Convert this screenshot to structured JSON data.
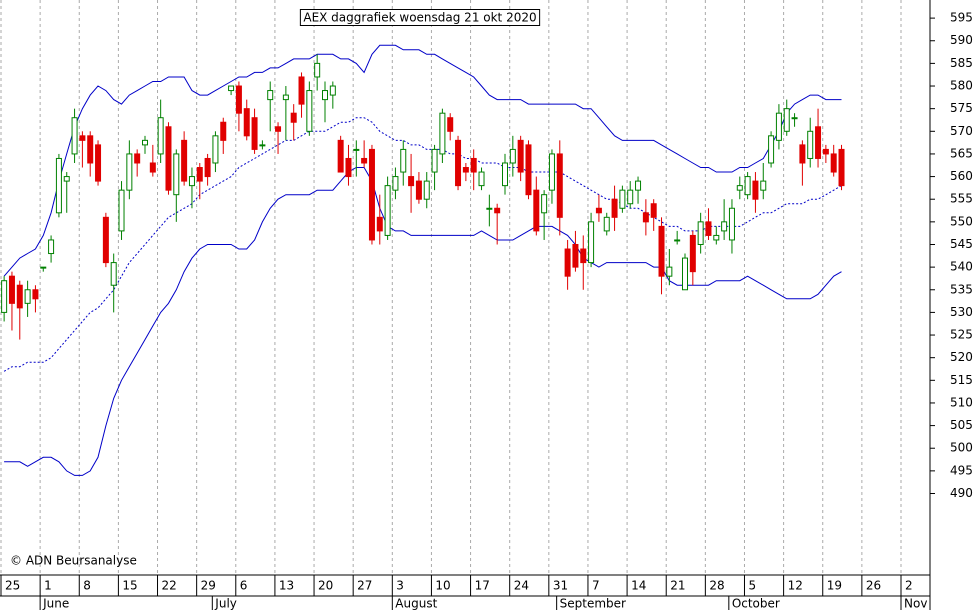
{
  "chart_data": {
    "type": "candlestick",
    "title": "AEX daggrafiek woensdag 21 okt 2020",
    "copyright": "© ADN Beursanalyse",
    "x": [
      "2020-05-25",
      "2020-05-26",
      "2020-05-27",
      "2020-05-28",
      "2020-05-29",
      "2020-06-01",
      "2020-06-02",
      "2020-06-03",
      "2020-06-04",
      "2020-06-05",
      "2020-06-08",
      "2020-06-09",
      "2020-06-10",
      "2020-06-11",
      "2020-06-12",
      "2020-06-15",
      "2020-06-16",
      "2020-06-17",
      "2020-06-18",
      "2020-06-19",
      "2020-06-22",
      "2020-06-23",
      "2020-06-24",
      "2020-06-25",
      "2020-06-26",
      "2020-06-29",
      "2020-06-30",
      "2020-07-01",
      "2020-07-02",
      "2020-07-03",
      "2020-07-06",
      "2020-07-07",
      "2020-07-08",
      "2020-07-09",
      "2020-07-10",
      "2020-07-13",
      "2020-07-14",
      "2020-07-15",
      "2020-07-16",
      "2020-07-17",
      "2020-07-20",
      "2020-07-21",
      "2020-07-22",
      "2020-07-23",
      "2020-07-24",
      "2020-07-27",
      "2020-07-28",
      "2020-07-29",
      "2020-07-30",
      "2020-07-31",
      "2020-08-03",
      "2020-08-04",
      "2020-08-05",
      "2020-08-06",
      "2020-08-07",
      "2020-08-10",
      "2020-08-11",
      "2020-08-12",
      "2020-08-13",
      "2020-08-14",
      "2020-08-17",
      "2020-08-18",
      "2020-08-19",
      "2020-08-20",
      "2020-08-21",
      "2020-08-24",
      "2020-08-25",
      "2020-08-26",
      "2020-08-27",
      "2020-08-28",
      "2020-08-31",
      "2020-09-01",
      "2020-09-02",
      "2020-09-03",
      "2020-09-04",
      "2020-09-07",
      "2020-09-08",
      "2020-09-09",
      "2020-09-10",
      "2020-09-11",
      "2020-09-14",
      "2020-09-15",
      "2020-09-16",
      "2020-09-17",
      "2020-09-18",
      "2020-09-21",
      "2020-09-22",
      "2020-09-23",
      "2020-09-24",
      "2020-09-25",
      "2020-09-28",
      "2020-09-29",
      "2020-09-30",
      "2020-10-01",
      "2020-10-02",
      "2020-10-05",
      "2020-10-06",
      "2020-10-07",
      "2020-10-08",
      "2020-10-09",
      "2020-10-12",
      "2020-10-13",
      "2020-10-14",
      "2020-10-15",
      "2020-10-16",
      "2020-10-19",
      "2020-10-20",
      "2020-10-21"
    ],
    "open": [
      530,
      538,
      536,
      532,
      535,
      540,
      543,
      552,
      559,
      565,
      569,
      569,
      567,
      551,
      536,
      548,
      557,
      565,
      567,
      563,
      565,
      571,
      556,
      568,
      558,
      562,
      564,
      563,
      572,
      579,
      580,
      575,
      573,
      567,
      577,
      571,
      577,
      574,
      582,
      570,
      582,
      577,
      578,
      568,
      564,
      566,
      564,
      566,
      551,
      547,
      557,
      561,
      560,
      559,
      555,
      561,
      565,
      573,
      568,
      562,
      564,
      558,
      553,
      553,
      558,
      563,
      568,
      567,
      557,
      552,
      557,
      565,
      544,
      545,
      544,
      541,
      553,
      548,
      555,
      553,
      554,
      557,
      552,
      554,
      549,
      538,
      546,
      535,
      547,
      545,
      550,
      546,
      548,
      546,
      557,
      556,
      559,
      557,
      563,
      568,
      570,
      573,
      567,
      564,
      571,
      566,
      565,
      566
    ],
    "high": [
      538,
      539,
      537,
      537,
      536,
      540,
      547,
      565,
      561,
      575,
      570,
      570,
      568,
      552,
      543,
      559,
      568,
      566,
      569,
      567,
      577,
      572,
      566,
      570,
      562,
      563,
      565,
      570,
      573,
      580,
      581,
      577,
      575,
      568,
      581,
      572,
      580,
      576,
      583,
      581,
      587,
      581,
      581,
      569,
      567,
      568,
      568,
      567,
      556,
      560,
      562,
      568,
      565,
      561,
      561,
      567,
      575,
      574,
      569,
      563,
      566,
      562,
      556,
      554,
      565,
      569,
      569,
      568,
      560,
      557,
      566,
      568,
      546,
      548,
      547,
      552,
      556,
      552,
      558,
      558,
      559,
      560,
      555,
      555,
      551,
      544,
      548,
      543,
      548,
      552,
      553,
      549,
      555,
      555,
      560,
      561,
      561,
      563,
      570,
      576,
      577,
      574,
      568,
      573,
      575,
      567,
      567,
      567
    ],
    "low": [
      528,
      526,
      524,
      529,
      530,
      539,
      541,
      551,
      552,
      563,
      562,
      560,
      558,
      540,
      530,
      546,
      555,
      560,
      565,
      560,
      563,
      556,
      550,
      558,
      553,
      555,
      558,
      561,
      565,
      578,
      570,
      568,
      565,
      566,
      570,
      565,
      568,
      568,
      573,
      569,
      579,
      572,
      575,
      561,
      558,
      560,
      562,
      545,
      545,
      546,
      555,
      558,
      552,
      554,
      553,
      557,
      563,
      568,
      557,
      559,
      557,
      557,
      549,
      545,
      556,
      560,
      559,
      555,
      547,
      546,
      554,
      547,
      535,
      539,
      535,
      540,
      550,
      547,
      548,
      552,
      553,
      554,
      547,
      548,
      534,
      536,
      545,
      535,
      536,
      543,
      546,
      545,
      546,
      543,
      555,
      555,
      552,
      555,
      562,
      566,
      569,
      571,
      558,
      562,
      562,
      563,
      560,
      557
    ],
    "close": [
      537,
      532,
      531,
      535,
      533,
      540,
      546,
      564,
      560,
      573,
      568,
      563,
      559,
      541,
      541,
      557,
      565,
      563,
      568,
      561,
      573,
      557,
      565,
      559,
      560,
      559,
      560,
      569,
      568,
      580,
      574,
      569,
      566,
      567,
      579,
      570,
      578,
      572,
      576,
      579,
      585,
      579,
      580,
      561,
      560,
      566,
      563,
      546,
      548,
      558,
      560,
      566,
      558,
      555,
      559,
      566,
      574,
      570,
      558,
      561,
      561,
      561,
      553,
      552,
      563,
      566,
      561,
      556,
      548,
      556,
      565,
      551,
      538,
      540,
      541,
      550,
      552,
      551,
      551,
      557,
      557,
      559,
      550,
      551,
      538,
      540,
      546,
      542,
      539,
      550,
      547,
      547,
      550,
      553,
      558,
      560,
      555,
      559,
      569,
      574,
      575,
      573,
      563,
      570,
      564,
      565,
      561,
      558
    ],
    "bands": [
      {
        "color": "#0000c8",
        "dash": false,
        "values": [
          538,
          540,
          542,
          543,
          544,
          547,
          552,
          559,
          565,
          571,
          575,
          578,
          580,
          579,
          577,
          576,
          578,
          579,
          580,
          581,
          581,
          582,
          582,
          582,
          579,
          578,
          578,
          579,
          580,
          581,
          582,
          582,
          583,
          583,
          584,
          584,
          585,
          586,
          586,
          586,
          587,
          587,
          587,
          586,
          586,
          585,
          583,
          587,
          589,
          589,
          589,
          588,
          588,
          588,
          587,
          587,
          586,
          585,
          584,
          583,
          582,
          580,
          578,
          577,
          577,
          577,
          577,
          576,
          576,
          576,
          576,
          576,
          576,
          576,
          575,
          575,
          573,
          571,
          569,
          568,
          568,
          568,
          568,
          568,
          567,
          566,
          565,
          564,
          563,
          562,
          562,
          561,
          561,
          561,
          562,
          562,
          563,
          564,
          567,
          570,
          574,
          576,
          577,
          578,
          578,
          577,
          577,
          577
        ]
      },
      {
        "color": "#0000c8",
        "dash": true,
        "values": [
          517,
          518,
          518,
          519,
          519,
          519,
          520,
          522,
          524,
          526,
          528,
          530,
          531,
          533,
          535,
          538,
          541,
          543,
          545,
          547,
          549,
          551,
          552,
          553,
          554,
          556,
          557,
          558,
          559,
          560,
          562,
          563,
          564,
          565,
          566,
          567,
          568,
          568,
          569,
          570,
          570,
          570,
          571,
          572,
          572,
          573,
          573,
          572,
          570,
          569,
          568,
          568,
          567,
          567,
          566,
          566,
          566,
          565,
          565,
          564,
          564,
          563,
          563,
          563,
          562,
          562,
          562,
          561,
          561,
          561,
          561,
          561,
          560,
          559,
          558,
          557,
          556,
          555,
          555,
          554,
          553,
          553,
          552,
          551,
          550,
          549,
          549,
          548,
          548,
          548,
          549,
          549,
          549,
          549,
          549,
          550,
          551,
          552,
          552,
          553,
          554,
          554,
          554,
          555,
          555,
          556,
          557,
          558
        ]
      },
      {
        "color": "#0000c8",
        "dash": false,
        "values": [
          497,
          497,
          497,
          496,
          497,
          498,
          498,
          497,
          495,
          494,
          494,
          495,
          498,
          505,
          511,
          515,
          518,
          521,
          524,
          527,
          530,
          532,
          535,
          539,
          542,
          544,
          545,
          545,
          545,
          545,
          544,
          544,
          546,
          550,
          553,
          555,
          556,
          556,
          556,
          556,
          557,
          557,
          557,
          559,
          561,
          562,
          562,
          559,
          553,
          549,
          548,
          548,
          547,
          547,
          547,
          547,
          547,
          547,
          547,
          547,
          547,
          548,
          547,
          546,
          546,
          546,
          547,
          548,
          549,
          549,
          549,
          548,
          547,
          545,
          542,
          541,
          540,
          541,
          541,
          541,
          541,
          541,
          541,
          540,
          540,
          537,
          536,
          536,
          536,
          536,
          536,
          537,
          537,
          537,
          537,
          538,
          537,
          536,
          535,
          534,
          533,
          533,
          533,
          533,
          534,
          536,
          538,
          539
        ]
      }
    ],
    "up_color": "#008000",
    "down_color": "#e00000",
    "xlim": [
      "2020-05-25",
      "2020-11-02"
    ],
    "xticks": [
      {
        "value": "2020-05-25",
        "label": "25"
      },
      {
        "value": "2020-06-01",
        "label": "1"
      },
      {
        "value": "2020-06-08",
        "label": "8"
      },
      {
        "value": "2020-06-15",
        "label": "15"
      },
      {
        "value": "2020-06-22",
        "label": "22"
      },
      {
        "value": "2020-06-29",
        "label": "29"
      },
      {
        "value": "2020-07-06",
        "label": "6"
      },
      {
        "value": "2020-07-13",
        "label": "13"
      },
      {
        "value": "2020-07-20",
        "label": "20"
      },
      {
        "value": "2020-07-27",
        "label": "27"
      },
      {
        "value": "2020-08-03",
        "label": "3"
      },
      {
        "value": "2020-08-10",
        "label": "10"
      },
      {
        "value": "2020-08-17",
        "label": "17"
      },
      {
        "value": "2020-08-24",
        "label": "24"
      },
      {
        "value": "2020-08-31",
        "label": "31"
      },
      {
        "value": "2020-09-07",
        "label": "7"
      },
      {
        "value": "2020-09-14",
        "label": "14"
      },
      {
        "value": "2020-09-21",
        "label": "21"
      },
      {
        "value": "2020-09-28",
        "label": "28"
      },
      {
        "value": "2020-10-05",
        "label": "5"
      },
      {
        "value": "2020-10-12",
        "label": "12"
      },
      {
        "value": "2020-10-19",
        "label": "19"
      },
      {
        "value": "2020-10-26",
        "label": "26"
      },
      {
        "value": "2020-11-02",
        "label": "2"
      }
    ],
    "months": [
      {
        "value": "2020-06-01",
        "label": "June"
      },
      {
        "value": "2020-07-01",
        "label": "July"
      },
      {
        "value": "2020-08-01",
        "label": "August"
      },
      {
        "value": "2020-09-01",
        "label": "September"
      },
      {
        "value": "2020-10-01",
        "label": "October"
      },
      {
        "value": "2020-11-01",
        "label": "Nov"
      }
    ],
    "ylim": [
      472,
      599
    ],
    "yticks": [
      490,
      495,
      500,
      505,
      510,
      515,
      520,
      525,
      530,
      535,
      540,
      545,
      550,
      555,
      560,
      565,
      570,
      575,
      580,
      585,
      590,
      595
    ],
    "grid": true
  }
}
